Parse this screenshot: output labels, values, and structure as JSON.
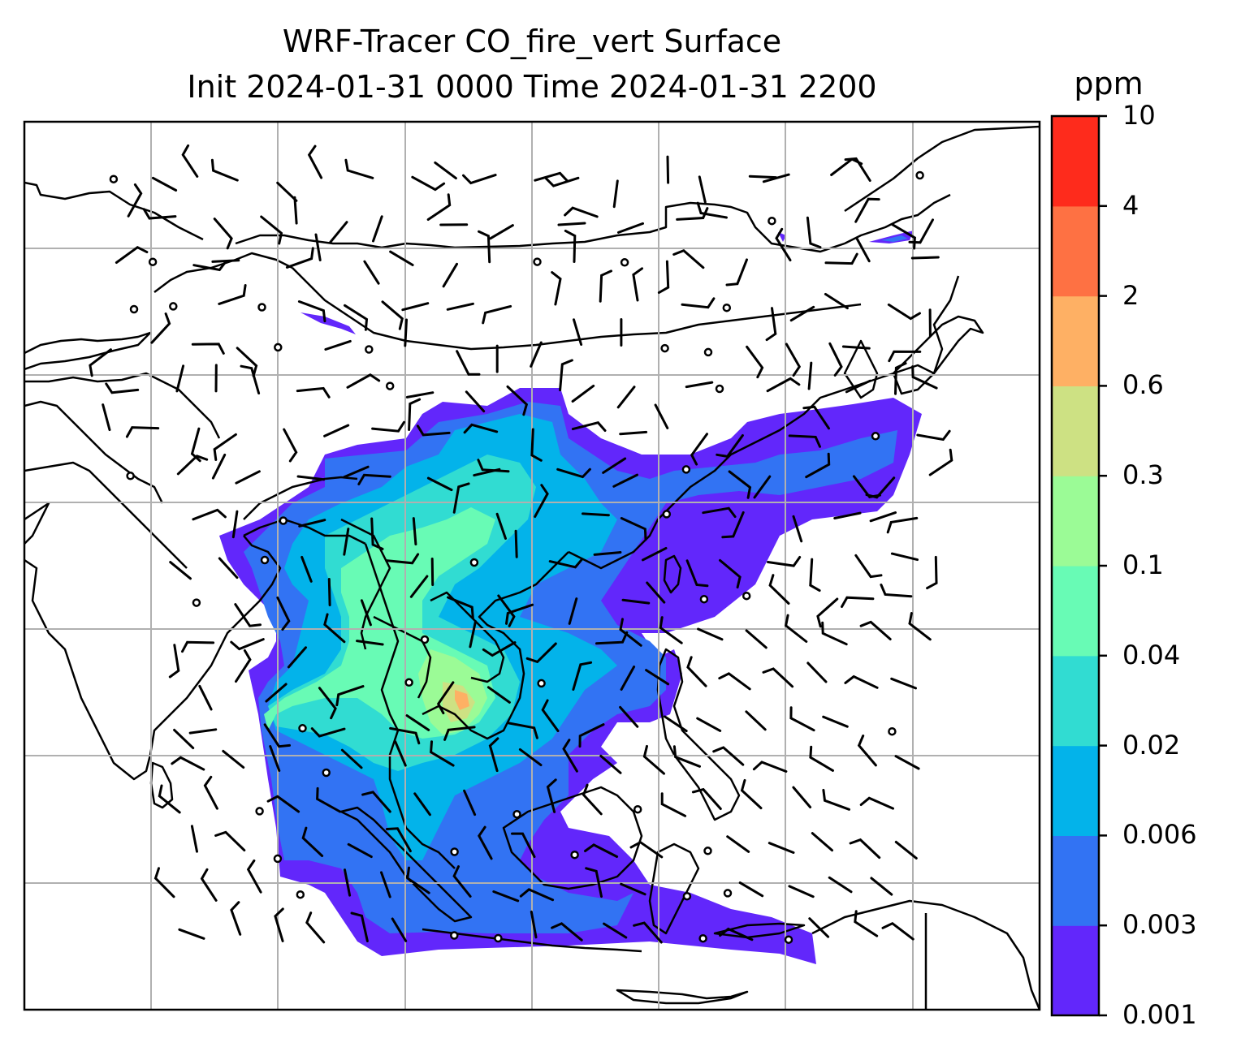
{
  "title_line1": "WRF-Tracer CO_fire_vert Surface",
  "title_line2": "Init 2024-01-31 0000 Time 2024-01-31 2200",
  "colorbar": {
    "unit": "ppm",
    "levels": [
      "0.001",
      "0.003",
      "0.006",
      "0.02",
      "0.04",
      "0.1",
      "0.3",
      "0.6",
      "2",
      "4",
      "10"
    ],
    "colors": [
      "#6227fb",
      "#3273f3",
      "#03b3ea",
      "#31dcd2",
      "#68fbb5",
      "#9bfb96",
      "#cde183",
      "#feb064",
      "#fe7143",
      "#fe2b1c"
    ]
  },
  "map": {
    "gridlines": true,
    "features": [
      "coastlines",
      "country-borders",
      "wind-barbs",
      "calm-wind-circles",
      "tracer-concentration-fill"
    ]
  }
}
